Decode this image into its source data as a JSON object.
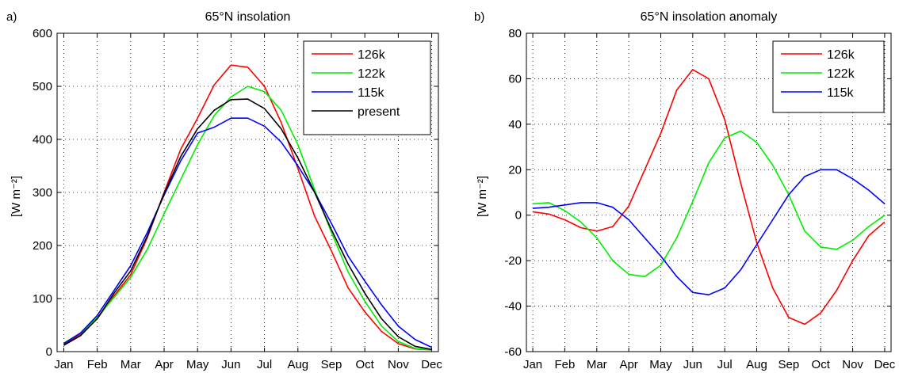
{
  "chart_data": [
    {
      "type": "line",
      "panel_label": "a)",
      "title": "65°N insolation",
      "xlabel": "",
      "ylabel": "[W m⁻²]",
      "categories": [
        "Jan",
        "Feb",
        "Mar",
        "Apr",
        "May",
        "Jun",
        "Jul",
        "Aug",
        "Sep",
        "Oct",
        "Nov",
        "Dec"
      ],
      "x": [
        1,
        1.5,
        2,
        2.5,
        3,
        3.5,
        4,
        4.5,
        5,
        5.5,
        6,
        6.5,
        7,
        7.5,
        8,
        8.5,
        9,
        9.5,
        10,
        10.5,
        11,
        11.5,
        12
      ],
      "xlim": [
        0.8,
        12.2
      ],
      "ylim": [
        0,
        600
      ],
      "yticks": [
        0,
        100,
        200,
        300,
        400,
        500,
        600
      ],
      "grid": true,
      "legend": "top-right",
      "series": [
        {
          "name": "126k",
          "color": "#ff0000",
          "values": [
            13,
            33,
            62,
            105,
            145,
            215,
            300,
            382,
            440,
            503,
            540,
            536,
            500,
            432,
            345,
            255,
            190,
            120,
            75,
            38,
            15,
            5,
            3
          ]
        },
        {
          "name": "122k",
          "color": "#00ee00",
          "values": [
            16,
            35,
            64,
            102,
            140,
            193,
            260,
            325,
            390,
            445,
            480,
            500,
            490,
            455,
            390,
            305,
            225,
            150,
            95,
            48,
            19,
            6,
            3
          ]
        },
        {
          "name": "115k",
          "color": "#0000ff",
          "values": [
            15,
            35,
            68,
            115,
            162,
            225,
            295,
            360,
            412,
            423,
            440,
            440,
            425,
            395,
            350,
            300,
            242,
            180,
            133,
            88,
            48,
            23,
            8
          ]
        },
        {
          "name": "present",
          "color": "#000000",
          "values": [
            12,
            30,
            62,
            110,
            152,
            218,
            298,
            368,
            420,
            455,
            475,
            476,
            458,
            420,
            365,
            300,
            230,
            165,
            110,
            62,
            28,
            10,
            4
          ]
        }
      ]
    },
    {
      "type": "line",
      "panel_label": "b)",
      "title": "65°N insolation anomaly",
      "xlabel": "",
      "ylabel": "[W m⁻²]",
      "categories": [
        "Jan",
        "Feb",
        "Mar",
        "Apr",
        "May",
        "Jun",
        "Jul",
        "Aug",
        "Sep",
        "Oct",
        "Nov",
        "Dec"
      ],
      "x": [
        1,
        1.5,
        2,
        2.5,
        3,
        3.5,
        4,
        4.5,
        5,
        5.5,
        6,
        6.5,
        7,
        7.5,
        8,
        8.5,
        9,
        9.5,
        10,
        10.5,
        11,
        11.5,
        12
      ],
      "xlim": [
        0.8,
        12.2
      ],
      "ylim": [
        -60,
        80
      ],
      "yticks": [
        -60,
        -40,
        -20,
        0,
        20,
        40,
        60,
        80
      ],
      "grid": true,
      "legend": "top-right",
      "series": [
        {
          "name": "126k",
          "color": "#ff0000",
          "values": [
            1.5,
            0.5,
            -2,
            -5.5,
            -7,
            -5,
            4,
            20,
            36,
            55,
            64,
            60,
            42,
            14,
            -12,
            -32,
            -45,
            -48,
            -43,
            -33,
            -20,
            -9,
            -3
          ]
        },
        {
          "name": "122k",
          "color": "#00ee00",
          "values": [
            5,
            5.5,
            2,
            -3,
            -10,
            -20,
            -26,
            -27,
            -22,
            -10,
            6,
            23,
            34,
            37,
            32,
            22,
            9,
            -7,
            -14,
            -15,
            -11,
            -5,
            0
          ]
        },
        {
          "name": "115k",
          "color": "#0000ff",
          "values": [
            3,
            3.5,
            4.5,
            5.5,
            5.5,
            3.5,
            -2,
            -10,
            -18,
            -27,
            -34,
            -35,
            -32,
            -24,
            -13,
            -2,
            9,
            17,
            20,
            20,
            16,
            11,
            5
          ]
        }
      ]
    }
  ]
}
